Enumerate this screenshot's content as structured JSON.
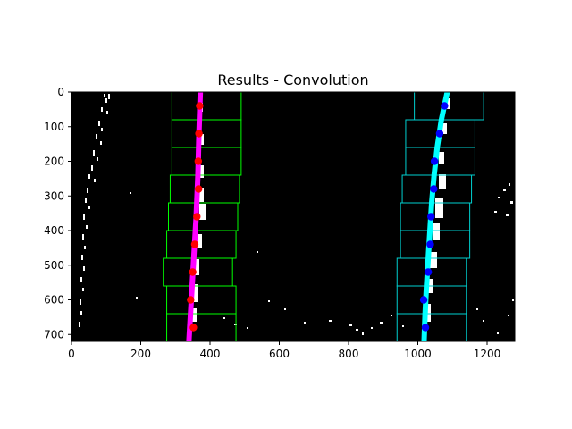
{
  "chart_data": {
    "type": "scatter",
    "title": "Results - Convolution",
    "xlabel": "",
    "ylabel": "",
    "xlim": [
      0,
      1280
    ],
    "ylim": [
      720,
      0
    ],
    "x_ticks": [
      0,
      200,
      400,
      600,
      800,
      1000,
      1200
    ],
    "y_ticks": [
      0,
      100,
      200,
      300,
      400,
      500,
      600,
      700
    ],
    "background_color": "#000000",
    "window_height": 80,
    "left_windows": [
      {
        "x_min": 290,
        "x_max": 490,
        "y_min": 0,
        "y_max": 80
      },
      {
        "x_min": 290,
        "x_max": 490,
        "y_min": 80,
        "y_max": 160
      },
      {
        "x_min": 290,
        "x_max": 490,
        "y_min": 160,
        "y_max": 240
      },
      {
        "x_min": 285,
        "x_max": 485,
        "y_min": 240,
        "y_max": 320
      },
      {
        "x_min": 280,
        "x_max": 480,
        "y_min": 320,
        "y_max": 400
      },
      {
        "x_min": 275,
        "x_max": 475,
        "y_min": 400,
        "y_max": 480
      },
      {
        "x_min": 265,
        "x_max": 465,
        "y_min": 480,
        "y_max": 560
      },
      {
        "x_min": 275,
        "x_max": 475,
        "y_min": 560,
        "y_max": 640
      },
      {
        "x_min": 275,
        "x_max": 475,
        "y_min": 640,
        "y_max": 720
      }
    ],
    "right_windows": [
      {
        "x_min": 990,
        "x_max": 1190,
        "y_min": 0,
        "y_max": 80
      },
      {
        "x_min": 965,
        "x_max": 1165,
        "y_min": 80,
        "y_max": 160
      },
      {
        "x_min": 965,
        "x_max": 1165,
        "y_min": 160,
        "y_max": 240
      },
      {
        "x_min": 955,
        "x_max": 1155,
        "y_min": 240,
        "y_max": 320
      },
      {
        "x_min": 950,
        "x_max": 1150,
        "y_min": 320,
        "y_max": 400
      },
      {
        "x_min": 950,
        "x_max": 1150,
        "y_min": 400,
        "y_max": 480
      },
      {
        "x_min": 940,
        "x_max": 1140,
        "y_min": 480,
        "y_max": 560
      },
      {
        "x_min": 940,
        "x_max": 1140,
        "y_min": 560,
        "y_max": 640
      },
      {
        "x_min": 940,
        "x_max": 1140,
        "y_min": 640,
        "y_max": 720
      }
    ],
    "left_points": [
      {
        "x": 370,
        "y": 40
      },
      {
        "x": 368,
        "y": 120
      },
      {
        "x": 366,
        "y": 200
      },
      {
        "x": 367,
        "y": 280
      },
      {
        "x": 362,
        "y": 360
      },
      {
        "x": 356,
        "y": 440
      },
      {
        "x": 350,
        "y": 520
      },
      {
        "x": 344,
        "y": 600
      },
      {
        "x": 352,
        "y": 680
      }
    ],
    "right_points": [
      {
        "x": 1077,
        "y": 40
      },
      {
        "x": 1063,
        "y": 120
      },
      {
        "x": 1048,
        "y": 200
      },
      {
        "x": 1046,
        "y": 280
      },
      {
        "x": 1038,
        "y": 360
      },
      {
        "x": 1036,
        "y": 440
      },
      {
        "x": 1030,
        "y": 520
      },
      {
        "x": 1017,
        "y": 600
      },
      {
        "x": 1022,
        "y": 680
      }
    ],
    "left_fit": {
      "color": "#ff00ff",
      "points": [
        {
          "x": 372,
          "y": 0
        },
        {
          "x": 368,
          "y": 120
        },
        {
          "x": 365,
          "y": 240
        },
        {
          "x": 360,
          "y": 360
        },
        {
          "x": 353,
          "y": 480
        },
        {
          "x": 346,
          "y": 600
        },
        {
          "x": 339,
          "y": 720
        }
      ]
    },
    "right_fit": {
      "color": "#00ffff",
      "points": [
        {
          "x": 1085,
          "y": 0
        },
        {
          "x": 1068,
          "y": 80
        },
        {
          "x": 1056,
          "y": 160
        },
        {
          "x": 1047,
          "y": 240
        },
        {
          "x": 1040,
          "y": 320
        },
        {
          "x": 1035,
          "y": 400
        },
        {
          "x": 1030,
          "y": 480
        },
        {
          "x": 1025,
          "y": 560
        },
        {
          "x": 1021,
          "y": 640
        },
        {
          "x": 1018,
          "y": 720
        }
      ]
    },
    "colors": {
      "left_window": "#00ff00",
      "right_window": "#00d0d0",
      "left_points": "#ff0000",
      "right_points": "#0000ff",
      "lane_pixels": "#ffffff"
    }
  }
}
